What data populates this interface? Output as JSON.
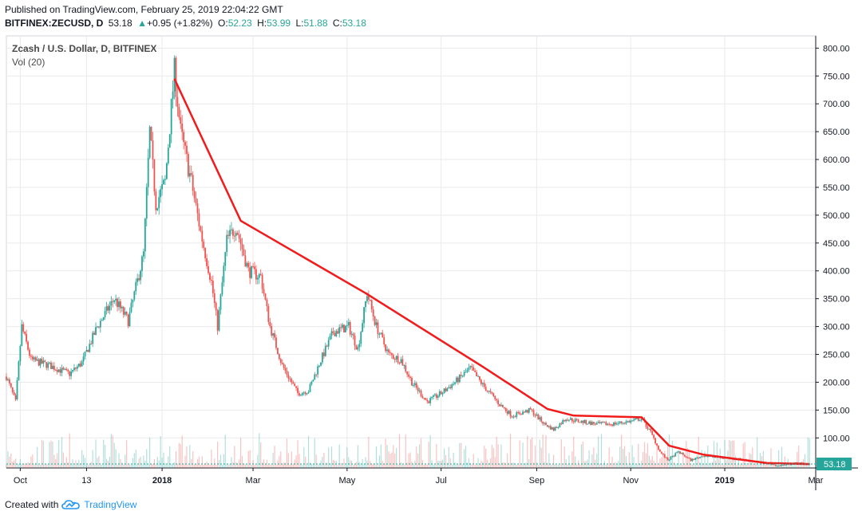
{
  "header": {
    "published": "Published on TradingView.com, February 25, 2019 22:04:22 GMT",
    "symbol": "BITFINEX:ZECUSD, D",
    "last": "53.18",
    "change_arrow": "▲",
    "change": "+0.95 (+1.82%)",
    "o_label": "O:",
    "o": "52.23",
    "h_label": "H:",
    "h": "53.99",
    "l_label": "L:",
    "l": "51.88",
    "c_label": "C:",
    "c": "53.18"
  },
  "legend": {
    "title": "Zcash / U.S. Dollar, D, BITFINEX",
    "volume": "Vol (20)"
  },
  "footer": {
    "created_with": "Created with",
    "brand": "TradingView",
    "logo_icon": "tradingview-cloud-icon"
  },
  "chart_data": {
    "type": "candlestick",
    "y_axis": {
      "ticks": [
        "800.00",
        "750.00",
        "700.00",
        "650.00",
        "600.00",
        "550.00",
        "500.00",
        "450.00",
        "400.00",
        "350.00",
        "300.00",
        "250.00",
        "200.00",
        "150.00",
        "100.00"
      ],
      "ylim": [
        46,
        822
      ],
      "position": "right"
    },
    "x_axis": {
      "ticks": [
        "Oct",
        "13",
        "2018",
        "Mar",
        "May",
        "Jul",
        "Sep",
        "Nov",
        "2019",
        "Mar"
      ],
      "bold_ticks": [
        "2018",
        "2019"
      ]
    },
    "last_price_label": "53.18",
    "last_price": 53.18,
    "colors": {
      "up": "#26a69a",
      "down": "#ef5350",
      "trendline": "#f21b1b",
      "grid": "#e9eaec",
      "axis": "#131722"
    },
    "series": {
      "close_path": [
        [
          "Sep 22 2017",
          210
        ],
        [
          "Sep 28 2017",
          165
        ],
        [
          "Oct 2 2017",
          300
        ],
        [
          "Oct 8 2017",
          240
        ],
        [
          "Oct 20 2017",
          230
        ],
        [
          "Nov 2 2017",
          215
        ],
        [
          "Nov 10 2017",
          235
        ],
        [
          "Nov 20 2017",
          300
        ],
        [
          "Dec 1 2017",
          350
        ],
        [
          "Dec 10 2017",
          310
        ],
        [
          "Dec 20 2017",
          430
        ],
        [
          "Dec 24 2017",
          650
        ],
        [
          "Dec 28 2017",
          520
        ],
        [
          "Jan 3 2018",
          560
        ],
        [
          "Jan 9 2018",
          760
        ],
        [
          "Jan 13 2018",
          650
        ],
        [
          "Jan 20 2018",
          560
        ],
        [
          "Jan 26 2018",
          470
        ],
        [
          "Feb 2 2018",
          380
        ],
        [
          "Feb 6 2018",
          300
        ],
        [
          "Feb 12 2018",
          455
        ],
        [
          "Feb 18 2018",
          480
        ],
        [
          "Feb 26 2018",
          400
        ],
        [
          "Mar 6 2018",
          390
        ],
        [
          "Mar 12 2018",
          300
        ],
        [
          "Mar 20 2018",
          230
        ],
        [
          "Mar 30 2018",
          180
        ],
        [
          "Apr 6 2018",
          185
        ],
        [
          "Apr 14 2018",
          240
        ],
        [
          "Apr 22 2018",
          290
        ],
        [
          "May 2 2018",
          300
        ],
        [
          "May 8 2018",
          260
        ],
        [
          "May 14 2018",
          360
        ],
        [
          "May 20 2018",
          300
        ],
        [
          "May 28 2018",
          250
        ],
        [
          "Jun 5 2018",
          240
        ],
        [
          "Jun 12 2018",
          200
        ],
        [
          "Jun 22 2018",
          165
        ],
        [
          "Jul 1 2018",
          180
        ],
        [
          "Jul 10 2018",
          200
        ],
        [
          "Jul 20 2018",
          225
        ],
        [
          "Jul 28 2018",
          195
        ],
        [
          "Aug 8 2018",
          160
        ],
        [
          "Aug 16 2018",
          140
        ],
        [
          "Aug 28 2018",
          150
        ],
        [
          "Sep 6 2018",
          125
        ],
        [
          "Sep 12 2018",
          115
        ],
        [
          "Sep 20 2018",
          135
        ],
        [
          "Sep 28 2018",
          130
        ],
        [
          "Oct 10 2018",
          125
        ],
        [
          "Oct 20 2018",
          125
        ],
        [
          "Nov 1 2018",
          130
        ],
        [
          "Nov 8 2018",
          135
        ],
        [
          "Nov 14 2018",
          110
        ],
        [
          "Nov 20 2018",
          75
        ],
        [
          "Nov 25 2018",
          60
        ],
        [
          "Dec 2 2018",
          75
        ],
        [
          "Dec 10 2018",
          60
        ],
        [
          "Dec 18 2018",
          68
        ],
        [
          "Dec 28 2018",
          65
        ],
        [
          "Jan 10 2019",
          62
        ],
        [
          "Jan 25 2019",
          56
        ],
        [
          "Feb 5 2019",
          50
        ],
        [
          "Feb 15 2019",
          55
        ],
        [
          "Feb 25 2019",
          53.18
        ]
      ],
      "trendline": [
        [
          "Jan 9 2018",
          745
        ],
        [
          "Feb 21 2018",
          490
        ],
        [
          "May 13 2018",
          360
        ],
        [
          "Jul 28 2018",
          228
        ],
        [
          "Sep 8 2018",
          152
        ],
        [
          "Sep 25 2018",
          140
        ],
        [
          "Nov 8 2018",
          137
        ],
        [
          "Nov 26 2018",
          86
        ],
        [
          "Dec 18 2018",
          70
        ],
        [
          "Jan 28 2019",
          55
        ],
        [
          "Feb 25 2019",
          53
        ]
      ]
    }
  }
}
